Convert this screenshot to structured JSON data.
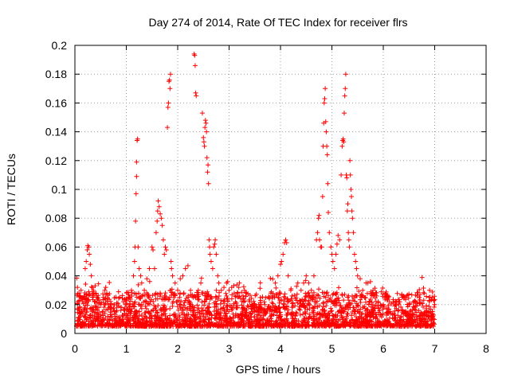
{
  "chart_data": {
    "type": "scatter",
    "title": "Day 274 of 2014, Rate Of TEC Index for receiver flrs",
    "xlabel": "GPS time / hours",
    "ylabel": "ROTI / TECUs",
    "xlim": [
      0,
      8
    ],
    "ylim": [
      0,
      0.2
    ],
    "x_ticks": [
      0,
      1,
      2,
      3,
      4,
      5,
      6,
      7,
      8
    ],
    "y_ticks": [
      0,
      0.02,
      0.04,
      0.06,
      0.08,
      0.1,
      0.12,
      0.14,
      0.16,
      0.18,
      0.2
    ],
    "x_tick_labels": [
      "0",
      "1",
      "2",
      "3",
      "4",
      "5",
      "6",
      "7",
      "8"
    ],
    "y_tick_labels": [
      "0",
      "0.02",
      "0.04",
      "0.06",
      "0.08",
      "0.1",
      "0.12",
      "0.14",
      "0.16",
      "0.18",
      "0.2"
    ],
    "grid": true,
    "marker": "+",
    "series_color": "#ff0000",
    "background_noise": {
      "x_range": [
        0.03,
        7.0
      ],
      "typical_floor": 0.005,
      "typical_level": 0.012,
      "note": "dense band of low ROTI values between about 0.002 and 0.03 across the full observation window"
    },
    "points": [
      [
        0.05,
        0.032
      ],
      [
        0.08,
        0.028
      ],
      [
        0.1,
        0.025
      ],
      [
        0.12,
        0.03
      ],
      [
        0.15,
        0.022
      ],
      [
        0.18,
        0.026
      ],
      [
        0.2,
        0.045
      ],
      [
        0.22,
        0.05
      ],
      [
        0.24,
        0.058
      ],
      [
        0.25,
        0.061
      ],
      [
        0.27,
        0.06
      ],
      [
        0.28,
        0.055
      ],
      [
        0.3,
        0.048
      ],
      [
        0.32,
        0.04
      ],
      [
        0.34,
        0.032
      ],
      [
        0.36,
        0.03
      ],
      [
        0.38,
        0.022
      ],
      [
        0.42,
        0.018
      ],
      [
        0.5,
        0.02
      ],
      [
        0.55,
        0.025
      ],
      [
        0.58,
        0.03
      ],
      [
        0.6,
        0.032
      ],
      [
        0.62,
        0.028
      ],
      [
        0.7,
        0.018
      ],
      [
        0.8,
        0.015
      ],
      [
        0.9,
        0.018
      ],
      [
        1.0,
        0.02
      ],
      [
        1.05,
        0.025
      ],
      [
        1.1,
        0.03
      ],
      [
        1.14,
        0.04
      ],
      [
        1.16,
        0.05
      ],
      [
        1.17,
        0.06
      ],
      [
        1.18,
        0.078
      ],
      [
        1.19,
        0.097
      ],
      [
        1.2,
        0.109
      ],
      [
        1.2,
        0.119
      ],
      [
        1.21,
        0.134
      ],
      [
        1.22,
        0.135
      ],
      [
        1.23,
        0.06
      ],
      [
        1.25,
        0.045
      ],
      [
        1.28,
        0.04
      ],
      [
        1.3,
        0.035
      ],
      [
        1.35,
        0.03
      ],
      [
        1.4,
        0.038
      ],
      [
        1.45,
        0.045
      ],
      [
        1.5,
        0.06
      ],
      [
        1.52,
        0.058
      ],
      [
        1.55,
        0.045
      ],
      [
        1.58,
        0.07
      ],
      [
        1.6,
        0.078
      ],
      [
        1.61,
        0.085
      ],
      [
        1.62,
        0.092
      ],
      [
        1.64,
        0.088
      ],
      [
        1.66,
        0.083
      ],
      [
        1.68,
        0.08
      ],
      [
        1.7,
        0.075
      ],
      [
        1.72,
        0.065
      ],
      [
        1.74,
        0.055
      ],
      [
        1.76,
        0.06
      ],
      [
        1.78,
        0.058
      ],
      [
        1.8,
        0.143
      ],
      [
        1.81,
        0.157
      ],
      [
        1.82,
        0.16
      ],
      [
        1.83,
        0.175
      ],
      [
        1.84,
        0.176
      ],
      [
        1.85,
        0.17
      ],
      [
        1.86,
        0.18
      ],
      [
        1.87,
        0.05
      ],
      [
        1.88,
        0.045
      ],
      [
        1.9,
        0.04
      ],
      [
        1.95,
        0.035
      ],
      [
        2.0,
        0.03
      ],
      [
        2.05,
        0.038
      ],
      [
        2.1,
        0.04
      ],
      [
        2.15,
        0.045
      ],
      [
        2.2,
        0.047
      ],
      [
        2.25,
        0.03
      ],
      [
        2.3,
        0.025
      ],
      [
        2.32,
        0.194
      ],
      [
        2.33,
        0.193
      ],
      [
        2.34,
        0.186
      ],
      [
        2.35,
        0.167
      ],
      [
        2.36,
        0.165
      ],
      [
        2.4,
        0.03
      ],
      [
        2.45,
        0.035
      ],
      [
        2.48,
        0.153
      ],
      [
        2.5,
        0.136
      ],
      [
        2.51,
        0.133
      ],
      [
        2.52,
        0.13
      ],
      [
        2.53,
        0.143
      ],
      [
        2.54,
        0.148
      ],
      [
        2.55,
        0.146
      ],
      [
        2.56,
        0.14
      ],
      [
        2.57,
        0.122
      ],
      [
        2.58,
        0.112
      ],
      [
        2.59,
        0.117
      ],
      [
        2.6,
        0.104
      ],
      [
        2.61,
        0.065
      ],
      [
        2.62,
        0.06
      ],
      [
        2.63,
        0.055
      ],
      [
        2.65,
        0.05
      ],
      [
        2.68,
        0.045
      ],
      [
        2.7,
        0.06
      ],
      [
        2.72,
        0.062
      ],
      [
        2.73,
        0.065
      ],
      [
        2.75,
        0.055
      ],
      [
        2.78,
        0.04
      ],
      [
        2.8,
        0.035
      ],
      [
        2.85,
        0.03
      ],
      [
        2.9,
        0.032
      ],
      [
        2.95,
        0.035
      ],
      [
        3.0,
        0.03
      ],
      [
        3.05,
        0.032
      ],
      [
        3.1,
        0.028
      ],
      [
        3.2,
        0.035
      ],
      [
        3.3,
        0.03
      ],
      [
        3.4,
        0.022
      ],
      [
        3.5,
        0.02
      ],
      [
        3.6,
        0.018
      ],
      [
        3.7,
        0.015
      ],
      [
        3.8,
        0.018
      ],
      [
        3.85,
        0.025
      ],
      [
        3.9,
        0.035
      ],
      [
        3.95,
        0.04
      ],
      [
        4.0,
        0.048
      ],
      [
        4.02,
        0.05
      ],
      [
        4.05,
        0.055
      ],
      [
        4.08,
        0.063
      ],
      [
        4.1,
        0.065
      ],
      [
        4.12,
        0.063
      ],
      [
        4.15,
        0.04
      ],
      [
        4.2,
        0.03
      ],
      [
        4.3,
        0.025
      ],
      [
        4.4,
        0.03
      ],
      [
        4.45,
        0.035
      ],
      [
        4.5,
        0.04
      ],
      [
        4.55,
        0.035
      ],
      [
        4.6,
        0.03
      ],
      [
        4.65,
        0.04
      ],
      [
        4.7,
        0.065
      ],
      [
        4.72,
        0.07
      ],
      [
        4.74,
        0.08
      ],
      [
        4.75,
        0.082
      ],
      [
        4.76,
        0.065
      ],
      [
        4.78,
        0.06
      ],
      [
        4.8,
        0.06
      ],
      [
        4.82,
        0.095
      ],
      [
        4.83,
        0.13
      ],
      [
        4.84,
        0.146
      ],
      [
        4.85,
        0.16
      ],
      [
        4.86,
        0.163
      ],
      [
        4.87,
        0.17
      ],
      [
        4.88,
        0.147
      ],
      [
        4.89,
        0.14
      ],
      [
        4.9,
        0.13
      ],
      [
        4.91,
        0.124
      ],
      [
        4.92,
        0.104
      ],
      [
        4.93,
        0.084
      ],
      [
        4.95,
        0.07
      ],
      [
        4.98,
        0.06
      ],
      [
        5.0,
        0.055
      ],
      [
        5.02,
        0.05
      ],
      [
        5.05,
        0.045
      ],
      [
        5.08,
        0.055
      ],
      [
        5.1,
        0.062
      ],
      [
        5.12,
        0.068
      ],
      [
        5.15,
        0.065
      ],
      [
        5.18,
        0.11
      ],
      [
        5.2,
        0.13
      ],
      [
        5.21,
        0.134
      ],
      [
        5.22,
        0.135
      ],
      [
        5.23,
        0.133
      ],
      [
        5.24,
        0.153
      ],
      [
        5.25,
        0.165
      ],
      [
        5.26,
        0.17
      ],
      [
        5.27,
        0.18
      ],
      [
        5.28,
        0.11
      ],
      [
        5.29,
        0.108
      ],
      [
        5.3,
        0.085
      ],
      [
        5.31,
        0.09
      ],
      [
        5.32,
        0.07
      ],
      [
        5.33,
        0.065
      ],
      [
        5.34,
        0.06
      ],
      [
        5.35,
        0.12
      ],
      [
        5.36,
        0.11
      ],
      [
        5.37,
        0.1
      ],
      [
        5.38,
        0.095
      ],
      [
        5.39,
        0.085
      ],
      [
        5.4,
        0.08
      ],
      [
        5.42,
        0.07
      ],
      [
        5.44,
        0.055
      ],
      [
        5.46,
        0.05
      ],
      [
        5.48,
        0.045
      ],
      [
        5.5,
        0.04
      ],
      [
        5.55,
        0.038
      ],
      [
        5.6,
        0.03
      ],
      [
        5.65,
        0.025
      ],
      [
        5.7,
        0.035
      ],
      [
        5.75,
        0.036
      ],
      [
        5.8,
        0.03
      ],
      [
        5.9,
        0.022
      ],
      [
        6.0,
        0.02
      ],
      [
        6.1,
        0.025
      ],
      [
        6.2,
        0.022
      ],
      [
        6.3,
        0.02
      ],
      [
        6.4,
        0.025
      ],
      [
        6.5,
        0.02
      ],
      [
        6.6,
        0.022
      ],
      [
        6.7,
        0.025
      ],
      [
        6.8,
        0.028
      ],
      [
        6.9,
        0.03
      ],
      [
        6.95,
        0.025
      ],
      [
        7.0,
        0.02
      ]
    ]
  }
}
